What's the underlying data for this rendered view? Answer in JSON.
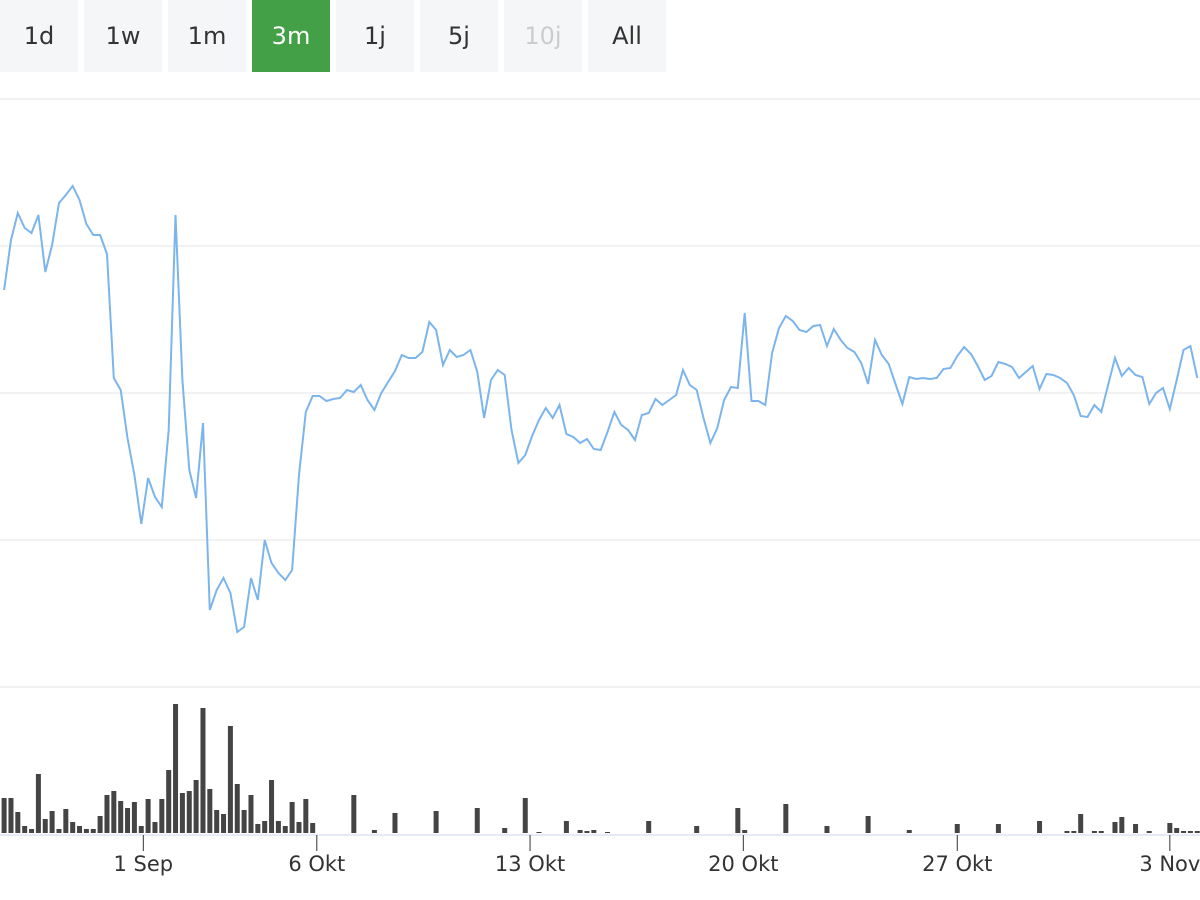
{
  "range_selector": {
    "buttons": [
      "1d",
      "1w",
      "1m",
      "3m",
      "1j",
      "5j",
      "10j",
      "All"
    ],
    "active": "3m",
    "disabled": [
      "10j"
    ]
  },
  "chart_data": [
    {
      "type": "line",
      "color": "#7cb5ec",
      "grid": true,
      "xlim": [
        -0.6,
        174.4
      ],
      "ylim": [
        0,
        588
      ],
      "yticks": [
        0,
        147,
        294,
        441,
        588
      ],
      "x": [
        0,
        1,
        2,
        3,
        4,
        5,
        6,
        7,
        8,
        9,
        10,
        11,
        12,
        13,
        14,
        15,
        16,
        17,
        18,
        19,
        20,
        21,
        22,
        23,
        24,
        25,
        26,
        27,
        28,
        29,
        30,
        31,
        32,
        33,
        34,
        35,
        36,
        37,
        38,
        39,
        40,
        41,
        42,
        43,
        44,
        45,
        46,
        47,
        48,
        49,
        50,
        51,
        52,
        53,
        54,
        55,
        56,
        57,
        58,
        59,
        60,
        61,
        62,
        63,
        64,
        65,
        66,
        67,
        68,
        69,
        70,
        71,
        72,
        73,
        74,
        75,
        76,
        77,
        78,
        79,
        80,
        81,
        82,
        83,
        84,
        85,
        86,
        87,
        88,
        89,
        90,
        91,
        92,
        93,
        94,
        95,
        96,
        97,
        98,
        99,
        100,
        101,
        102,
        103,
        104,
        105,
        106,
        107,
        108,
        109,
        110,
        111,
        112,
        113,
        114,
        115,
        116,
        117,
        118,
        119,
        120,
        121,
        122,
        123,
        124,
        125,
        126,
        127,
        128,
        129,
        130,
        131,
        132,
        133,
        134,
        135,
        136,
        137,
        138,
        139,
        140,
        141,
        142,
        143,
        144,
        145,
        146,
        147,
        148,
        149,
        150,
        151,
        152,
        153,
        154,
        155,
        156,
        157,
        158,
        159,
        160,
        161,
        162,
        163,
        164,
        165,
        166,
        167,
        168,
        169,
        170,
        171,
        172,
        173,
        174
      ],
      "values": [
        397,
        447,
        474,
        459,
        454,
        472,
        415,
        442,
        484,
        492,
        501,
        487,
        463,
        452,
        452,
        433,
        309,
        297,
        249,
        212,
        163,
        209,
        190,
        180,
        257,
        472,
        307,
        217,
        189,
        264,
        77,
        97,
        109,
        94,
        55,
        60,
        109,
        87,
        147,
        124,
        114,
        107,
        117,
        212,
        275,
        291,
        291,
        286,
        288,
        289,
        297,
        295,
        302,
        287,
        277,
        294,
        305,
        316,
        332,
        329,
        329,
        335,
        365,
        357,
        322,
        337,
        330,
        332,
        337,
        315,
        269,
        307,
        317,
        312,
        257,
        224,
        232,
        251,
        267,
        279,
        269,
        282,
        253,
        250,
        244,
        248,
        238,
        237,
        255,
        275,
        262,
        257,
        247,
        272,
        274,
        288,
        282,
        287,
        292,
        317,
        302,
        297,
        269,
        244,
        259,
        287,
        300,
        299,
        374,
        286,
        286,
        282,
        334,
        359,
        371,
        366,
        357,
        355,
        361,
        362,
        341,
        358,
        347,
        339,
        335,
        324,
        303,
        347,
        332,
        323,
        303,
        283,
        310,
        308,
        309,
        308,
        309,
        318,
        319,
        331,
        340,
        333,
        321,
        307,
        311,
        325,
        323,
        320,
        309,
        315,
        321,
        298,
        313,
        312,
        309,
        304,
        292,
        271,
        270,
        282,
        275,
        302,
        329,
        311,
        319,
        312,
        310,
        283,
        294,
        299,
        278,
        307,
        337,
        341,
        309
      ]
    },
    {
      "type": "bar",
      "color": "#444444",
      "xlim": [
        -0.6,
        174.4
      ],
      "ylim": [
        0,
        130
      ],
      "xticks": [
        {
          "value": 20.3,
          "label": "1 Sep"
        },
        {
          "value": 45.6,
          "label": "6 Okt"
        },
        {
          "value": 76.7,
          "label": "13 Okt"
        },
        {
          "value": 107.8,
          "label": "20 Okt"
        },
        {
          "value": 139.0,
          "label": "27 Okt"
        },
        {
          "value": 170.0,
          "label": "3 Nov"
        }
      ],
      "x": [
        0,
        1,
        2,
        3,
        4,
        5,
        6,
        7,
        8,
        9,
        10,
        11,
        12,
        13,
        14,
        15,
        16,
        17,
        18,
        19,
        20,
        21,
        22,
        23,
        24,
        25,
        26,
        27,
        28,
        29,
        30,
        31,
        32,
        33,
        34,
        35,
        36,
        37,
        38,
        39,
        40,
        41,
        42,
        43,
        44,
        45,
        51,
        54,
        57,
        63,
        69,
        73,
        76,
        78,
        82,
        84,
        85,
        86,
        88,
        94,
        101,
        107,
        108,
        114,
        120,
        126,
        132,
        139,
        145,
        151,
        155,
        156,
        157,
        159,
        160,
        162,
        163,
        165,
        167,
        170,
        171,
        172,
        173,
        174
      ],
      "values": [
        35,
        35,
        21,
        7,
        4,
        59,
        14,
        22,
        4,
        24,
        11,
        7,
        4,
        4,
        17,
        38,
        42,
        32,
        25,
        31,
        7,
        34,
        11,
        34,
        63,
        129,
        40,
        42,
        53,
        125,
        44,
        23,
        19,
        107,
        49,
        23,
        38,
        9,
        12,
        53,
        12,
        7,
        31,
        11,
        34,
        10,
        38,
        3,
        20,
        22,
        25,
        5,
        35,
        1,
        12,
        3,
        2,
        3,
        1,
        12,
        7,
        25,
        3,
        29,
        7,
        17,
        3,
        9,
        9,
        12,
        2,
        2,
        19,
        2,
        2,
        11,
        16,
        9,
        2,
        10,
        5,
        2,
        2,
        2
      ]
    }
  ]
}
